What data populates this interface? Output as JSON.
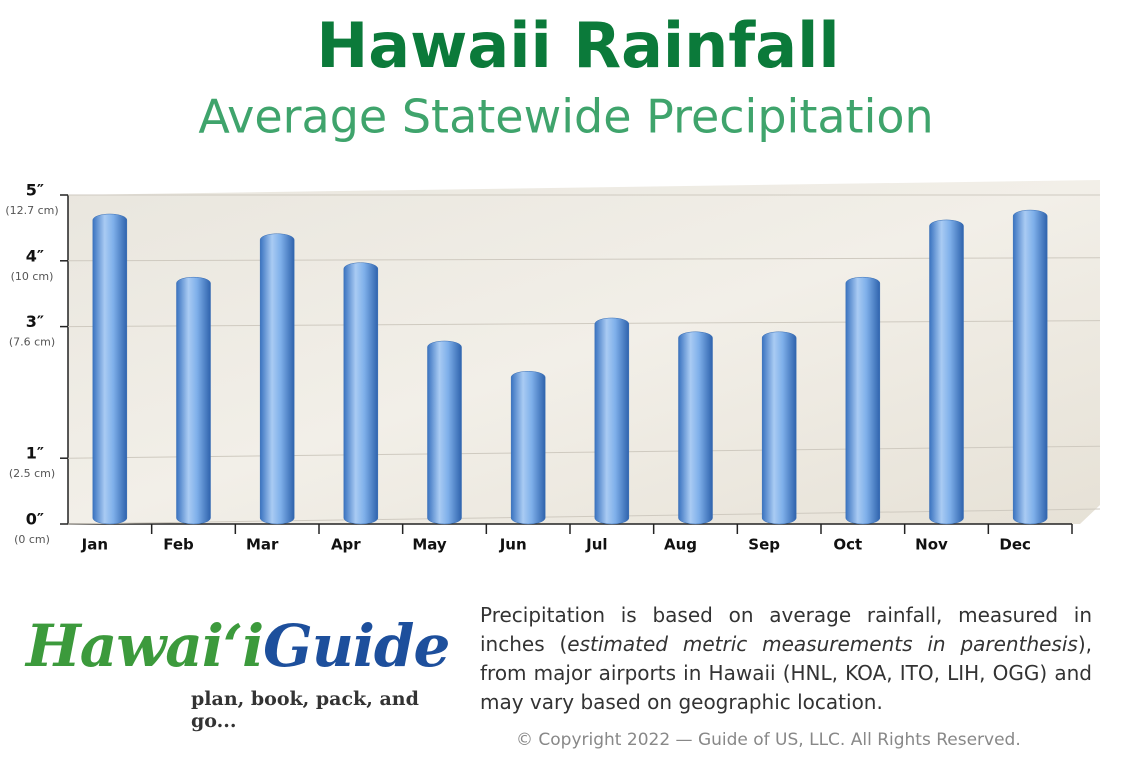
{
  "chart_data": {
    "type": "bar",
    "title": "Hawaii Rainfall",
    "subtitle": "Average Statewide Precipitation",
    "categories": [
      "Jan",
      "Feb",
      "Mar",
      "Apr",
      "May",
      "Jun",
      "Jul",
      "Aug",
      "Sep",
      "Oct",
      "Nov",
      "Dec"
    ],
    "values": [
      4.62,
      3.66,
      4.32,
      3.88,
      2.69,
      2.23,
      3.04,
      2.83,
      2.83,
      3.66,
      4.53,
      4.68
    ],
    "color": "#5b95d8",
    "ylim": [
      0,
      5
    ],
    "yticks": [
      {
        "value": 5,
        "label": "5″"
      },
      {
        "value": 4,
        "label": "4″"
      },
      {
        "value": 3,
        "label": "3″"
      },
      {
        "value": 1,
        "label": "1″"
      },
      {
        "value": 0,
        "label": "0″"
      }
    ],
    "ytick_metric": [
      "(12.7 cm)",
      "(10 cm)",
      "(7.6 cm)",
      "(2.5 cm)",
      "(0 cm)"
    ],
    "grid": true
  },
  "logo": {
    "brand_first": "Hawai‘i",
    "brand_second": "Guide",
    "tagline": "plan, book, pack, and go..."
  },
  "description": {
    "part1": "Precipitation is based on average rainfall, measured in inches (",
    "italic": "estimated metric measurements in parenthesis",
    "part2": "), from major airports in Hawaii (HNL, KOA, ITO, LIH, OGG) and may vary based on geographic location."
  },
  "copyright": "© Copyright 2022 — Guide of US, LLC. All Rights Reserved."
}
